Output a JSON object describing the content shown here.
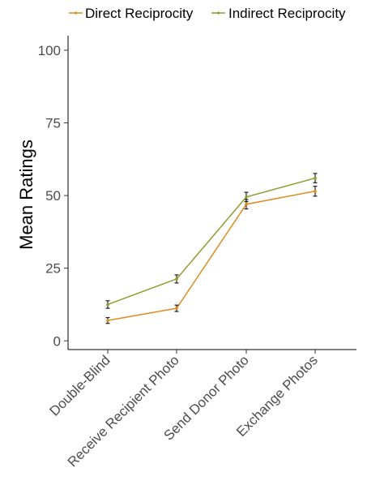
{
  "chart_data": {
    "type": "line",
    "categories": [
      "Double-Blind",
      "Receive Recipient Photo",
      "Send Donor Photo",
      "Exchange Photos"
    ],
    "series": [
      {
        "name": "Direct Reciprocity",
        "color": "#e08a1e",
        "values": [
          7.0,
          11.2,
          47.0,
          51.5
        ],
        "errors": [
          1.0,
          1.1,
          1.6,
          1.7
        ]
      },
      {
        "name": "Indirect Reciprocity",
        "color": "#8f9a2c",
        "values": [
          12.5,
          21.3,
          49.5,
          56.0
        ],
        "errors": [
          1.3,
          1.4,
          1.6,
          1.6
        ]
      }
    ],
    "ylabel": "Mean Ratings",
    "xlabel": "",
    "yticks": [
      0,
      25,
      50,
      75,
      100
    ],
    "ylim": [
      -3,
      105
    ],
    "legend_position": "top",
    "grid": false
  }
}
